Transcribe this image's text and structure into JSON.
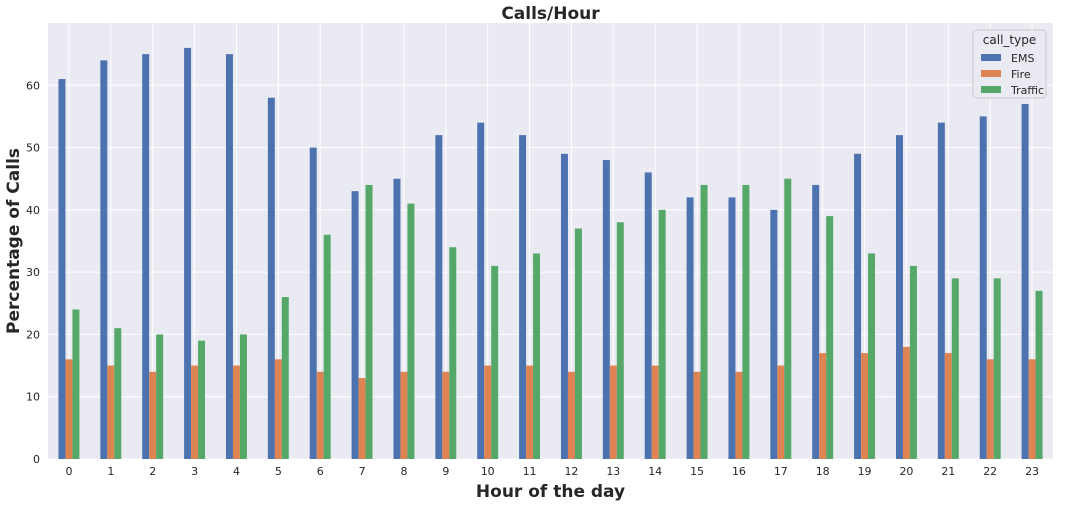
{
  "chart_data": {
    "type": "bar",
    "title": "Calls/Hour",
    "xlabel": "Hour of the day",
    "ylabel": "Percentage of Calls",
    "categories": [
      "0",
      "1",
      "2",
      "3",
      "4",
      "5",
      "6",
      "7",
      "8",
      "9",
      "10",
      "11",
      "12",
      "13",
      "14",
      "15",
      "16",
      "17",
      "18",
      "19",
      "20",
      "21",
      "22",
      "23"
    ],
    "ylim": [
      0,
      70
    ],
    "yticks": [
      0,
      10,
      20,
      30,
      40,
      50,
      60
    ],
    "grid": true,
    "legend": {
      "title": "call_type",
      "position": "top-right"
    },
    "series": [
      {
        "name": "EMS",
        "color": "#4c72b0",
        "values": [
          61,
          64,
          65,
          66,
          65,
          58,
          50,
          43,
          45,
          52,
          54,
          52,
          49,
          48,
          46,
          42,
          42,
          40,
          44,
          49,
          52,
          54,
          55,
          57
        ]
      },
      {
        "name": "Fire",
        "color": "#dd8452",
        "values": [
          16,
          15,
          14,
          15,
          15,
          16,
          14,
          13,
          14,
          14,
          15,
          15,
          14,
          15,
          15,
          14,
          14,
          15,
          17,
          17,
          18,
          17,
          16,
          16
        ]
      },
      {
        "name": "Traffic",
        "color": "#55a868",
        "values": [
          24,
          21,
          20,
          19,
          20,
          26,
          36,
          44,
          41,
          34,
          31,
          33,
          37,
          38,
          40,
          44,
          44,
          45,
          39,
          33,
          31,
          29,
          29,
          27
        ]
      }
    ],
    "plot_background": "#eaeaf2",
    "grid_color": "#ffffff"
  }
}
